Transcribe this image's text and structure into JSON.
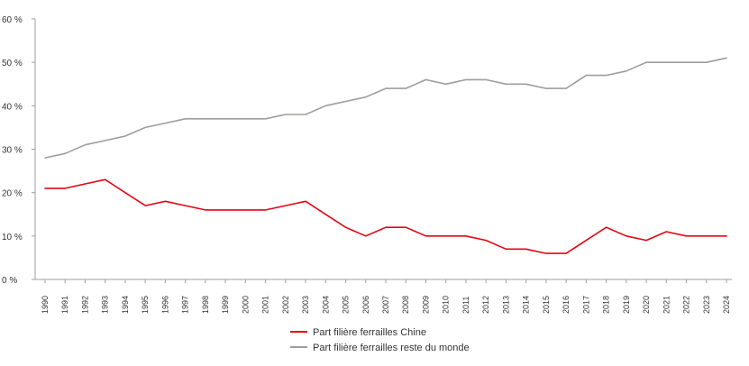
{
  "chart_data": {
    "type": "line",
    "title": "",
    "xlabel": "",
    "ylabel": "",
    "ylim": [
      0,
      60
    ],
    "yticks": [
      0,
      10,
      20,
      30,
      40,
      50,
      60
    ],
    "ytick_labels": [
      "0 %",
      "10 %",
      "20 %",
      "30 %",
      "40 %",
      "50 %",
      "60 %"
    ],
    "grid": false,
    "legend_position": "bottom-center",
    "categories": [
      "1990",
      "1991",
      "1992",
      "1993",
      "1994",
      "1995",
      "1996",
      "1997",
      "1998",
      "1999",
      "2000",
      "2001",
      "2002",
      "2003",
      "2004",
      "2005",
      "2006",
      "2007",
      "2008",
      "2009",
      "2010",
      "2011",
      "2012",
      "2013",
      "2014",
      "2015",
      "2016",
      "2017",
      "2018",
      "2019",
      "2020",
      "2021",
      "2022",
      "2023",
      "2024"
    ],
    "series": [
      {
        "name": "Part filière ferrailles Chine",
        "color": "#e30613",
        "values": [
          21,
          21,
          22,
          23,
          20,
          17,
          18,
          17,
          16,
          16,
          16,
          16,
          17,
          18,
          15,
          12,
          10,
          12,
          12,
          10,
          10,
          10,
          9,
          7,
          7,
          6,
          6,
          9,
          12,
          10,
          9,
          11,
          10,
          10,
          10
        ]
      },
      {
        "name": "Part filière ferrailles reste du monde",
        "color": "#9d9d9c",
        "values": [
          28,
          29,
          31,
          32,
          33,
          35,
          36,
          37,
          37,
          37,
          37,
          37,
          38,
          38,
          40,
          41,
          42,
          44,
          44,
          46,
          45,
          46,
          46,
          45,
          45,
          44,
          44,
          47,
          47,
          48,
          50,
          50,
          50,
          50,
          51
        ]
      }
    ]
  }
}
